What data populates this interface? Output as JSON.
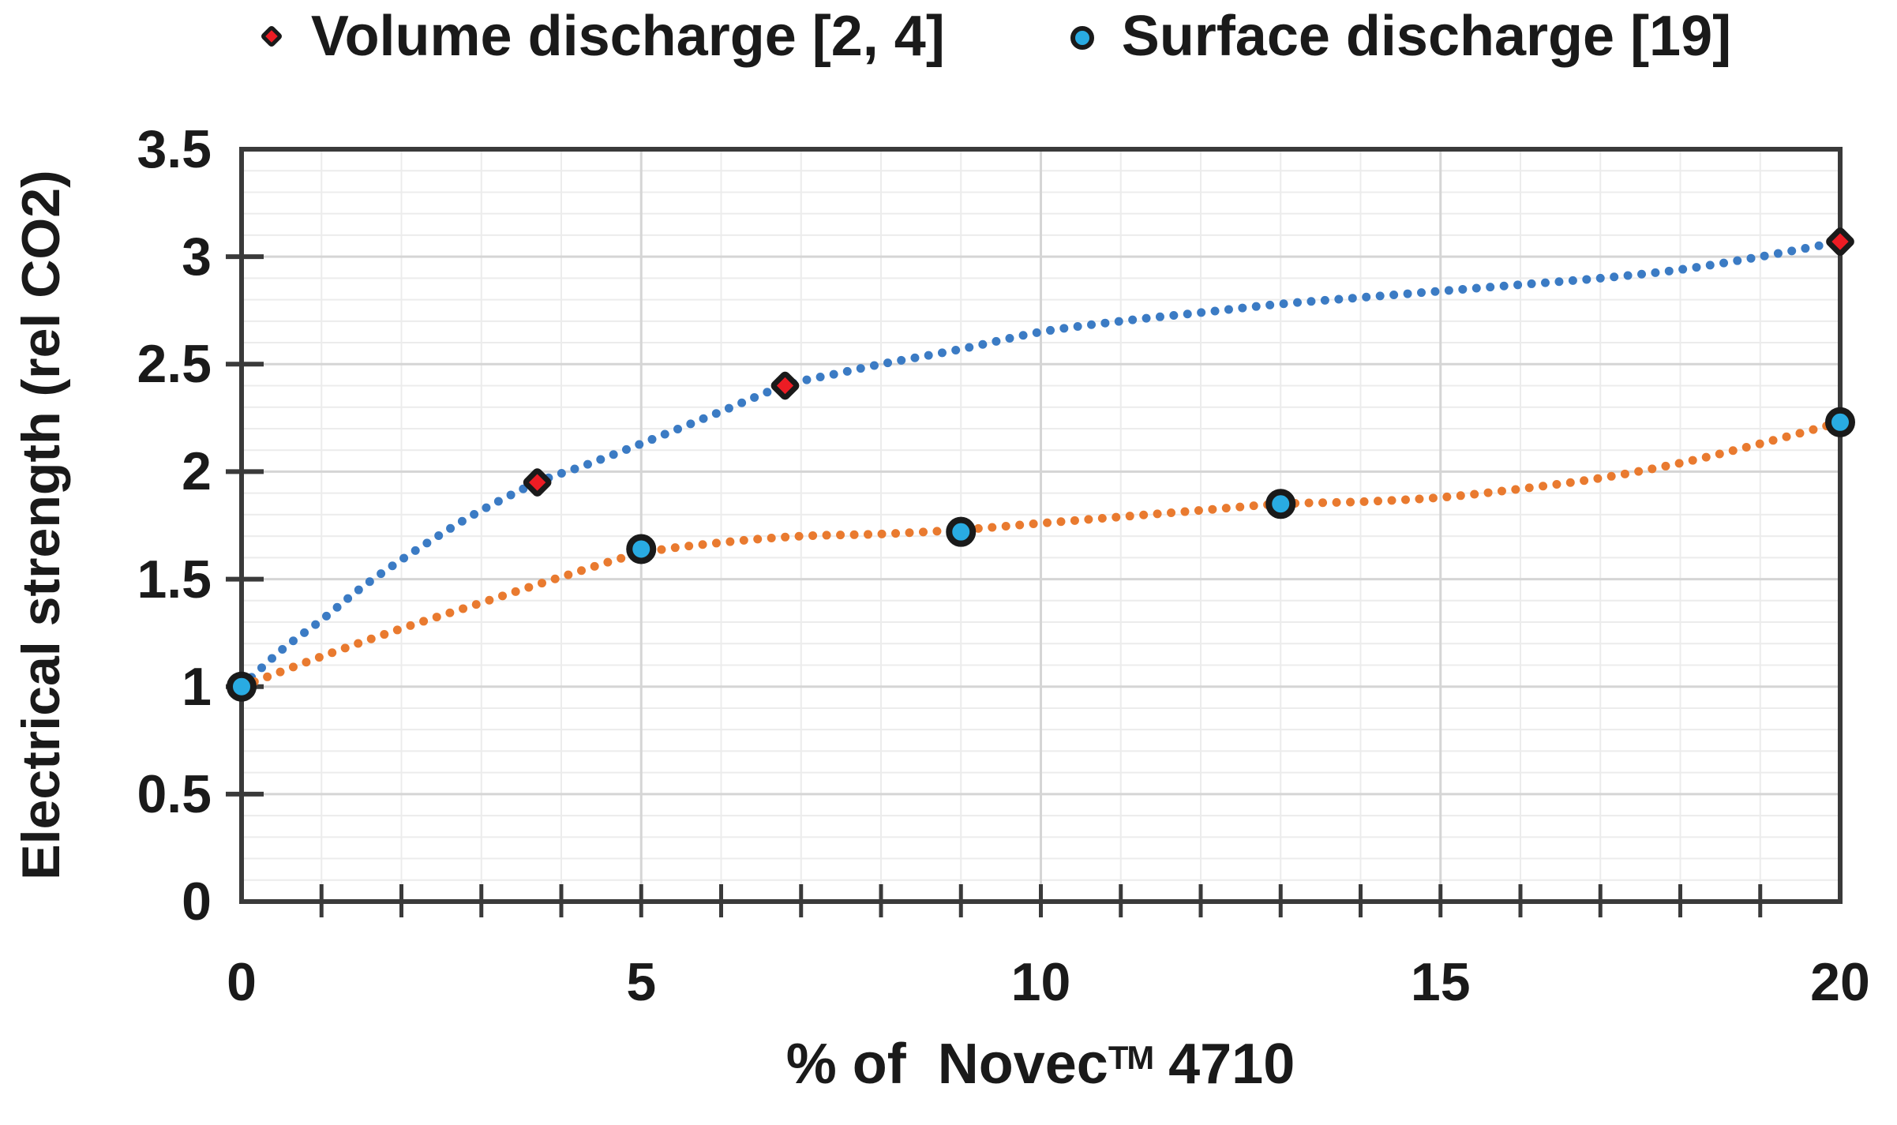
{
  "chart_data": {
    "type": "scatter",
    "title": "",
    "ylabel": "Electrical strength (rel CO2)",
    "xlabel_prefix": "% of  Novec",
    "xlabel_sup": "TM",
    "xlabel_suffix": " 4710",
    "xlim": [
      0,
      20
    ],
    "ylim": [
      0,
      3.5
    ],
    "x_ticks": [
      [
        0,
        "0"
      ],
      [
        5,
        "5"
      ],
      [
        10,
        "10"
      ],
      [
        15,
        "15"
      ],
      [
        20,
        "20"
      ]
    ],
    "y_ticks": [
      [
        0,
        "0"
      ],
      [
        0.5,
        "0.5"
      ],
      [
        1,
        "1"
      ],
      [
        1.5,
        "1.5"
      ],
      [
        2,
        "2"
      ],
      [
        2.5,
        "2.5"
      ],
      [
        3,
        "3"
      ],
      [
        3.5,
        "3.5"
      ]
    ],
    "x_minor_step": 1,
    "y_minor_step": 0.1,
    "grid": {
      "major": true,
      "minor": true
    },
    "legend_position": "top-center",
    "series": [
      {
        "name": "Volume discharge [2, 4]",
        "marker": "diamond",
        "marker_fill": "#ED1C24",
        "marker_stroke": "#1A1A1A",
        "trend_style": "dotted",
        "trend_color": "#3B7BC4",
        "points": [
          [
            3.7,
            1.95
          ],
          [
            6.8,
            2.4
          ],
          [
            20,
            3.07
          ]
        ],
        "trend": [
          [
            0,
            1.0
          ],
          [
            0.5,
            1.17
          ],
          [
            1,
            1.31
          ],
          [
            1.5,
            1.46
          ],
          [
            2,
            1.59
          ],
          [
            2.5,
            1.71
          ],
          [
            3,
            1.82
          ],
          [
            3.7,
            1.95
          ],
          [
            4.3,
            2.03
          ],
          [
            5,
            2.13
          ],
          [
            6,
            2.28
          ],
          [
            6.8,
            2.4
          ],
          [
            7.5,
            2.46
          ],
          [
            8,
            2.5
          ],
          [
            9,
            2.57
          ],
          [
            10,
            2.65
          ],
          [
            11,
            2.7
          ],
          [
            12,
            2.74
          ],
          [
            13,
            2.78
          ],
          [
            14,
            2.81
          ],
          [
            15,
            2.84
          ],
          [
            16,
            2.87
          ],
          [
            17,
            2.9
          ],
          [
            18,
            2.94
          ],
          [
            19,
            3.0
          ],
          [
            20,
            3.07
          ]
        ]
      },
      {
        "name": "Surface discharge [19]",
        "marker": "circle",
        "marker_fill": "#29ABE2",
        "marker_stroke": "#1A1A1A",
        "trend_style": "dotted",
        "trend_color": "#E97A2F",
        "points": [
          [
            0,
            1.0
          ],
          [
            5,
            1.64
          ],
          [
            9,
            1.72
          ],
          [
            13,
            1.85
          ],
          [
            20,
            2.23
          ]
        ],
        "trend": [
          [
            0,
            1.0
          ],
          [
            1,
            1.14
          ],
          [
            2,
            1.27
          ],
          [
            3,
            1.39
          ],
          [
            4,
            1.51
          ],
          [
            5,
            1.62
          ],
          [
            6,
            1.67
          ],
          [
            7,
            1.7
          ],
          [
            8,
            1.71
          ],
          [
            9,
            1.73
          ],
          [
            10,
            1.76
          ],
          [
            11,
            1.79
          ],
          [
            12,
            1.82
          ],
          [
            13,
            1.85
          ],
          [
            14,
            1.86
          ],
          [
            15,
            1.88
          ],
          [
            16,
            1.92
          ],
          [
            17,
            1.97
          ],
          [
            18,
            2.04
          ],
          [
            19,
            2.13
          ],
          [
            20,
            2.23
          ]
        ]
      }
    ],
    "colors": {
      "background": "#FFFFFF",
      "axis": "#3A3A3A",
      "grid_major": "#D5D5D5",
      "grid_minor": "#ECECEC",
      "text": "#1A1A1A"
    }
  }
}
